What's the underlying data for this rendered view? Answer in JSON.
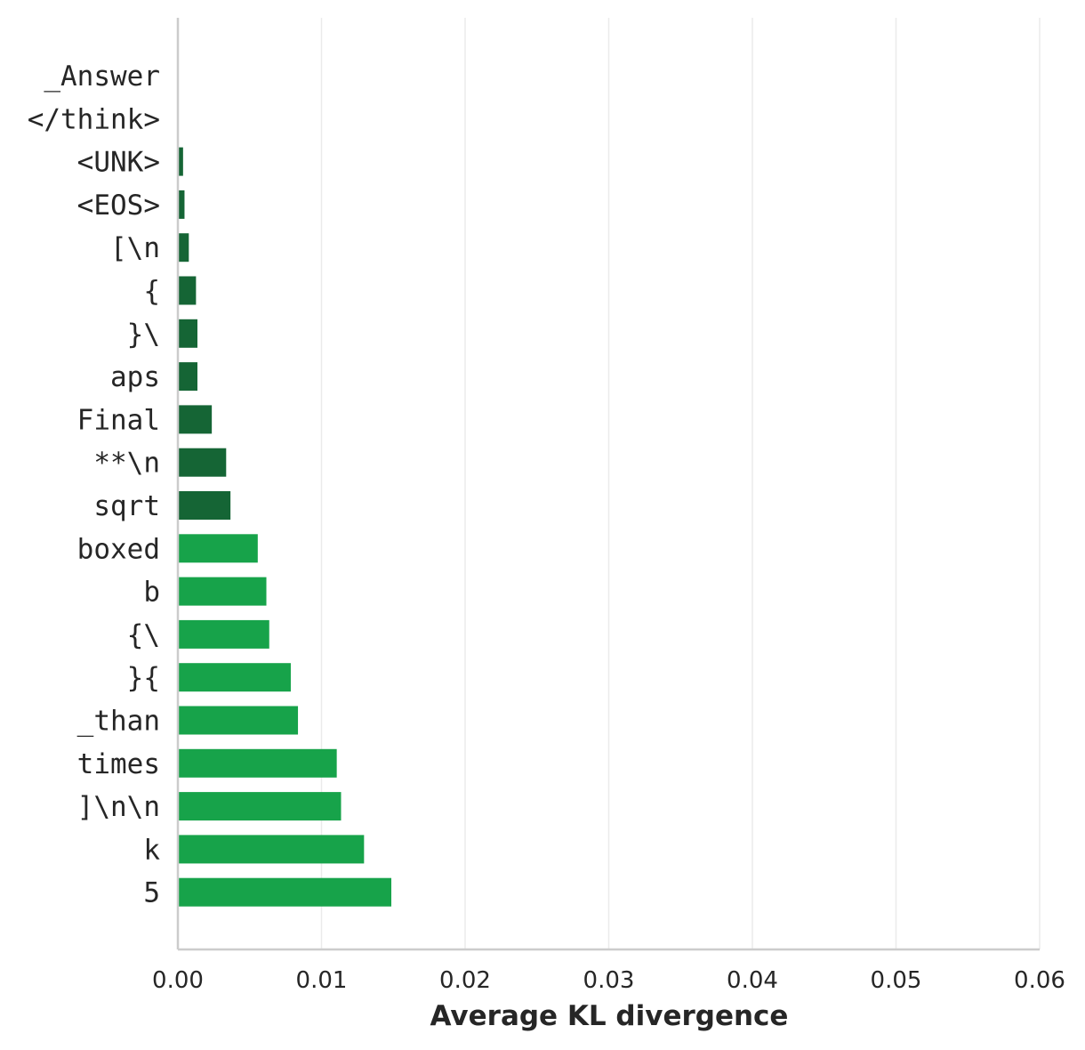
{
  "chart_data": {
    "type": "bar",
    "orientation": "horizontal",
    "xlabel": "Average KL divergence",
    "xlim": [
      0,
      0.06
    ],
    "x_ticks": [
      "0.00",
      "0.01",
      "0.02",
      "0.03",
      "0.04",
      "0.05",
      "0.06"
    ],
    "grid": "vertical",
    "categories": [
      "_Answer",
      "</think>",
      "<UNK>",
      "<EOS>",
      "[\\n",
      "{",
      "}\\",
      "aps",
      "Final",
      "**\\n",
      "sqrt",
      "boxed",
      "b",
      "{\\",
      "}{",
      "_than",
      "times",
      "]\\n\\n",
      "k",
      "5"
    ],
    "values": [
      0.0,
      0.0,
      0.0003,
      0.0004,
      0.0007,
      0.0012,
      0.0013,
      0.0013,
      0.0023,
      0.0033,
      0.0036,
      0.0055,
      0.0061,
      0.0063,
      0.0078,
      0.0083,
      0.011,
      0.0113,
      0.0129,
      0.0148
    ],
    "bar_colors": [
      "#156535",
      "#156535",
      "#156535",
      "#156535",
      "#156535",
      "#156535",
      "#156535",
      "#156535",
      "#156535",
      "#156535",
      "#156535",
      "#17a34a",
      "#17a34a",
      "#17a34a",
      "#17a34a",
      "#17a34a",
      "#17a34a",
      "#17a34a",
      "#17a34a",
      "#17a34a"
    ],
    "colors": {
      "dark_green": "#156535",
      "light_green": "#17a34a",
      "axis": "#cccccc",
      "grid": "#ebebeb",
      "text": "#262626"
    }
  }
}
